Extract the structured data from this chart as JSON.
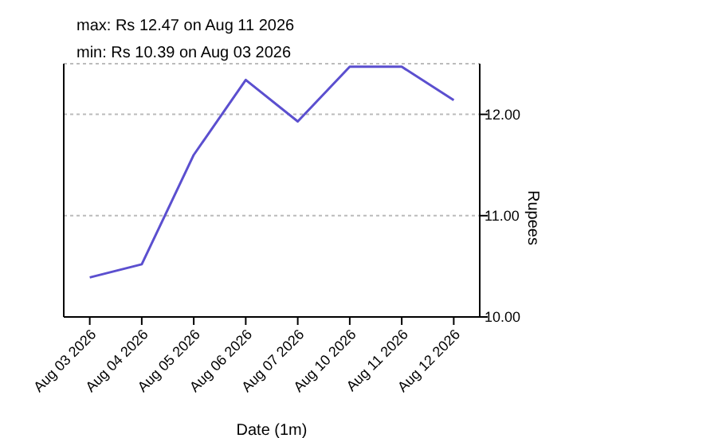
{
  "chart_data": {
    "type": "line",
    "xlabel": "Date (1m)",
    "ylabel": "Rupees",
    "annotations": [
      "max: Rs 12.47 on Aug 11 2026",
      "min: Rs 10.39 on Aug 03 2026"
    ],
    "categories": [
      "Aug 03 2026",
      "Aug 04 2026",
      "Aug 05 2026",
      "Aug 06 2026",
      "Aug 07 2026",
      "Aug 10 2026",
      "Aug 11 2026",
      "Aug 12 2026"
    ],
    "series": [
      {
        "color": "#5b4fcf",
        "values": [
          10.39,
          10.52,
          11.6,
          12.34,
          11.93,
          12.47,
          12.47,
          12.14
        ]
      }
    ],
    "ylim": [
      10,
      12.5
    ],
    "yticks": [
      {
        "value": 10,
        "label": "10.00"
      },
      {
        "value": 11,
        "label": "11.00"
      },
      {
        "value": 12,
        "label": "12.00"
      }
    ],
    "grid": "y",
    "legend": false,
    "marker": "none",
    "line_style": "solid"
  }
}
